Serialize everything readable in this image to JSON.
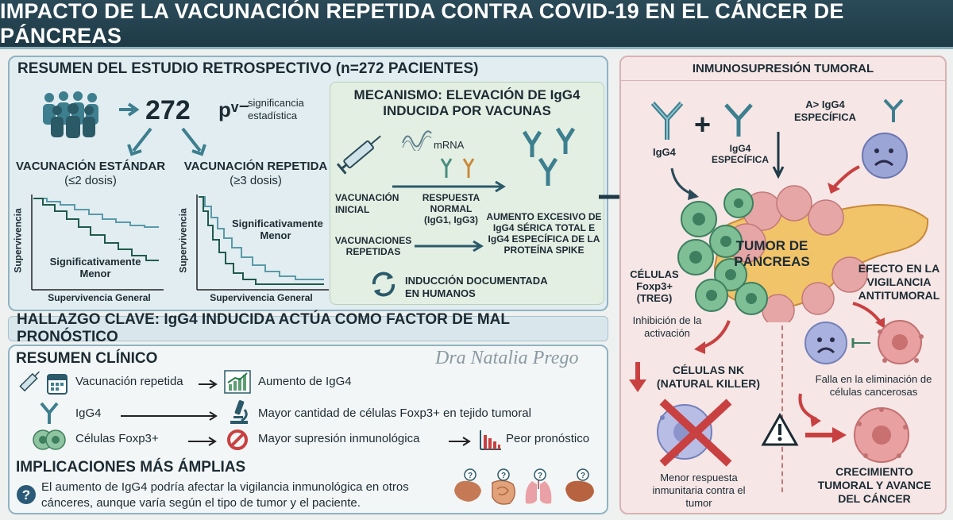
{
  "title": "IMPACTO DE LA VACUNACIÓN REPETIDA CONTRA COVID-19 EN EL CÁNCER DE PÁNCREAS",
  "summary": {
    "header": "RESUMEN DEL ESTUDIO RETROSPECTIVO (n=272 PACIENTES)",
    "count": "272",
    "p_symbol": "pᵛ⁻",
    "p_label": "significancia estadística",
    "standard": {
      "title": "VACUNACIÓN ESTÁNDAR",
      "doses": "(≤2 dosis)",
      "note": "Significativamente Menor",
      "ylabel": "Supervivencia",
      "xlabel": "Supervivencia General"
    },
    "repeated": {
      "title": "VACUNACIÓN REPETIDA",
      "doses": "(≥3 dosis)",
      "note": "Significativamente Menor",
      "ylabel": "Supervivencia",
      "xlabel": "Supervivencia General"
    }
  },
  "mechanism": {
    "header": "MECANISMO: ELEVACIÓN DE IgG4 INDUCIDA POR VACUNAS",
    "mrna": "mRNA",
    "initial": "VACUNACIÓN INICIAL",
    "normal": "RESPUESTA NORMAL (IgG1, IgG3)",
    "repeated": "VACUNACIONES REPETIDAS",
    "excess": "AUMENTO EXCESIVO DE IgG4 SÉRICA TOTAL E IgG4 ESPECÍFICA DE LA PROTEÍNA SPIKE",
    "induction": "INDUCCIÓN DOCUMENTADA EN HUMANOS"
  },
  "key_finding": "HALLAZGO CLAVE: IgG4 INDUCIDA ACTÚA COMO FACTOR DE MAL PRONÓSTICO",
  "clinical": {
    "header": "RESUMEN CLÍNICO",
    "signature": "Dra Natalia Prego",
    "rows": [
      {
        "left": "Vacunación repetida",
        "right": "Aumento de IgG4"
      },
      {
        "left": "IgG4",
        "right": "Mayor cantidad de células Foxp3+ en tejido tumoral"
      },
      {
        "left": "Células Foxp3+",
        "right": "Mayor supresión inmunológica",
        "extra": "Peor pronóstico"
      }
    ],
    "implications_header": "IMPLICACIONES MÁS ÁMPLIAS",
    "implications_text": "El aumento de IgG4 podría afectar la vigilancia inmunológica en otros cánceres, aunque varía según el tipo de tumor y el paciente."
  },
  "right": {
    "header": "INMUNOSUPRESIÓN TUMORAL",
    "igg4": "IgG4",
    "igg4_specific": "IgG4 ESPECÍFICA",
    "more_igg4": "A> IgG4 ESPECÍFICA",
    "tumor": "TUMOR DE PÁNCREAS",
    "treg": "CÉLULAS Foxp3+ (TREG)",
    "inhibition": "Inhibición de la activación",
    "effect": "EFECTO EN LA VIGILANCIA ANTITUMORAL",
    "nk": "CÉLULAS NK (NATURAL KILLER)",
    "failure": "Falla en la eliminación de células cancerosas",
    "less_response": "Menor respuesta inmunitaria contra el tumor",
    "growth": "CRECIMIENTO TUMORAL Y AVANCE DEL CÁNCER"
  },
  "colors": {
    "banner": "#1e3a47",
    "teal": "#3d7f8f",
    "red": "#c94040",
    "green": "#5e9e74"
  }
}
